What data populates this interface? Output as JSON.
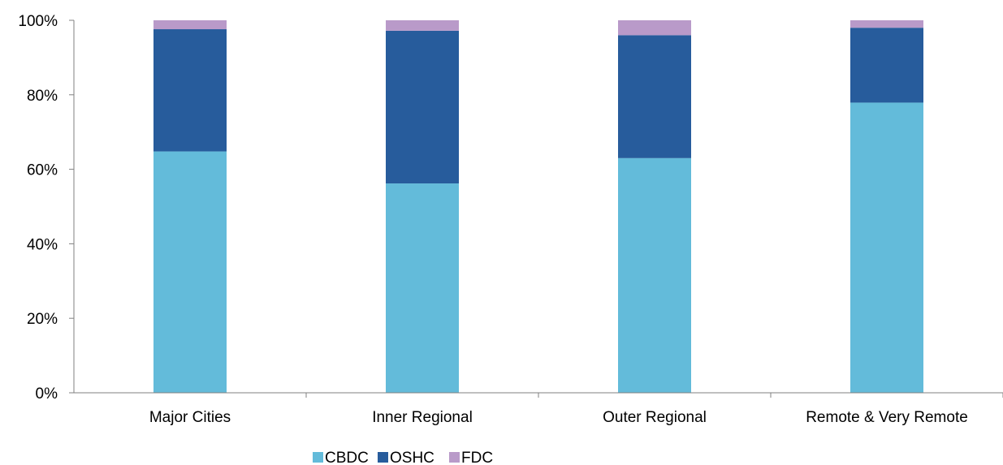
{
  "chart_data": {
    "type": "bar",
    "stacked": true,
    "categories": [
      "Major Cities",
      "Inner Regional",
      "Outer Regional",
      "Remote & Very Remote"
    ],
    "series": [
      {
        "name": "CBDC",
        "color": "#63BBDA",
        "values": [
          64.8,
          56.2,
          63.0,
          77.9
        ]
      },
      {
        "name": "OSHC",
        "color": "#275C9C",
        "values": [
          32.8,
          41.0,
          33.0,
          20.1
        ]
      },
      {
        "name": "FDC",
        "color": "#B99AC9",
        "values": [
          2.4,
          2.8,
          4.0,
          2.0
        ]
      }
    ],
    "y_ticks": [
      "0%",
      "20%",
      "40%",
      "60%",
      "80%",
      "100%"
    ],
    "ylim": [
      0,
      100
    ],
    "grid": false,
    "legend_position": "bottom"
  }
}
